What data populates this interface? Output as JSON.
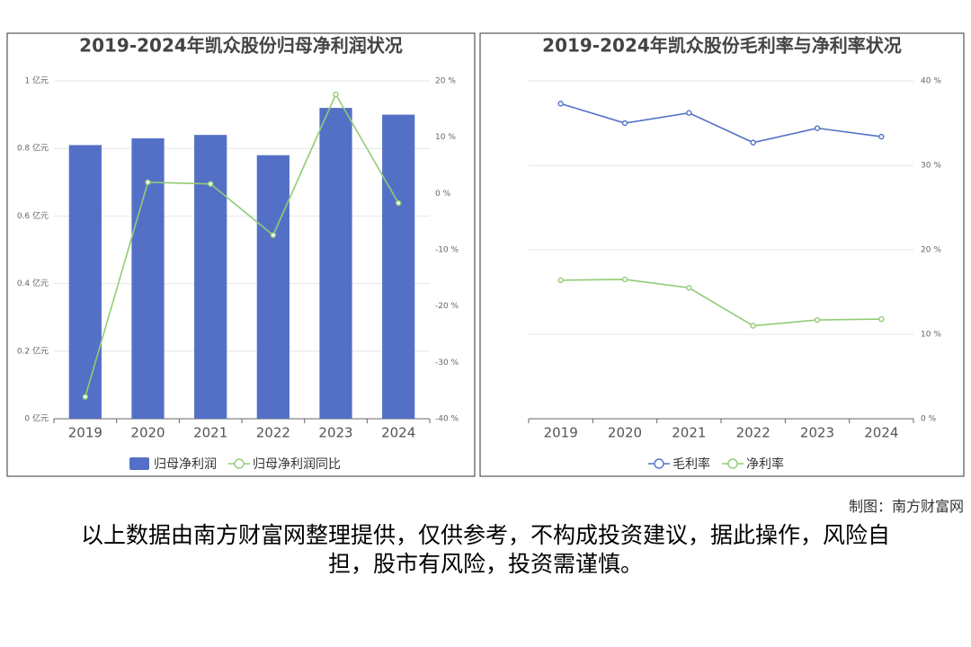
{
  "chart_data": [
    {
      "type": "bar",
      "title": "2019-2024年凯众股份归母净利润状况",
      "categories": [
        "2019",
        "2020",
        "2021",
        "2022",
        "2023",
        "2024"
      ],
      "series": [
        {
          "name": "归母净利润",
          "type": "bar",
          "color": "#5470c6",
          "values": [
            0.81,
            0.83,
            0.84,
            0.78,
            0.92,
            0.9
          ]
        },
        {
          "name": "归母净利润同比",
          "type": "line",
          "axis": "y2",
          "color": "#91cc75",
          "values": [
            -36.1,
            2.0,
            1.7,
            -7.4,
            17.6,
            -1.7
          ]
        }
      ],
      "ylim": [
        0,
        1
      ],
      "yticks": [
        {
          "value": 0,
          "label": "0 亿元"
        },
        {
          "value": 0.2,
          "label": "0.2 亿元"
        },
        {
          "value": 0.4,
          "label": "0.4 亿元"
        },
        {
          "value": 0.6,
          "label": "0.6 亿元"
        },
        {
          "value": 0.8,
          "label": "0.8 亿元"
        },
        {
          "value": 1,
          "label": "1 亿元"
        }
      ],
      "y2lim": [
        -40,
        20
      ],
      "y2ticks": [
        {
          "value": -40,
          "label": "-40 %"
        },
        {
          "value": -30,
          "label": "-30 %"
        },
        {
          "value": -20,
          "label": "-20 %"
        },
        {
          "value": -10,
          "label": "-10 %"
        },
        {
          "value": 0,
          "label": "0 %"
        },
        {
          "value": 10,
          "label": "10 %"
        },
        {
          "value": 20,
          "label": "20 %"
        }
      ],
      "grid": true
    },
    {
      "type": "line",
      "title": "2019-2024年凯众股份毛利率与净利率状况",
      "categories": [
        "2019",
        "2020",
        "2021",
        "2022",
        "2023",
        "2024"
      ],
      "series": [
        {
          "name": "毛利率",
          "color": "#5470c6",
          "values": [
            37.3,
            35.0,
            36.2,
            32.7,
            34.4,
            33.4
          ]
        },
        {
          "name": "净利率",
          "color": "#91cc75",
          "values": [
            16.4,
            16.5,
            15.5,
            11.0,
            11.7,
            11.8
          ]
        }
      ],
      "ylim": [
        0,
        40
      ],
      "yticks": [
        {
          "value": 0,
          "label": "0 %"
        },
        {
          "value": 10,
          "label": "10 %"
        },
        {
          "value": 20,
          "label": "20 %"
        },
        {
          "value": 30,
          "label": "30 %"
        },
        {
          "value": 40,
          "label": "40 %"
        }
      ],
      "y_axis_position": "right",
      "grid": true
    }
  ],
  "source": "制图：南方财富网",
  "disclaimer": "以上数据由南方财富网整理提供，仅供参考，不构成投资建议，据此操作，风险自担，股市有风险，投资需谨慎。"
}
